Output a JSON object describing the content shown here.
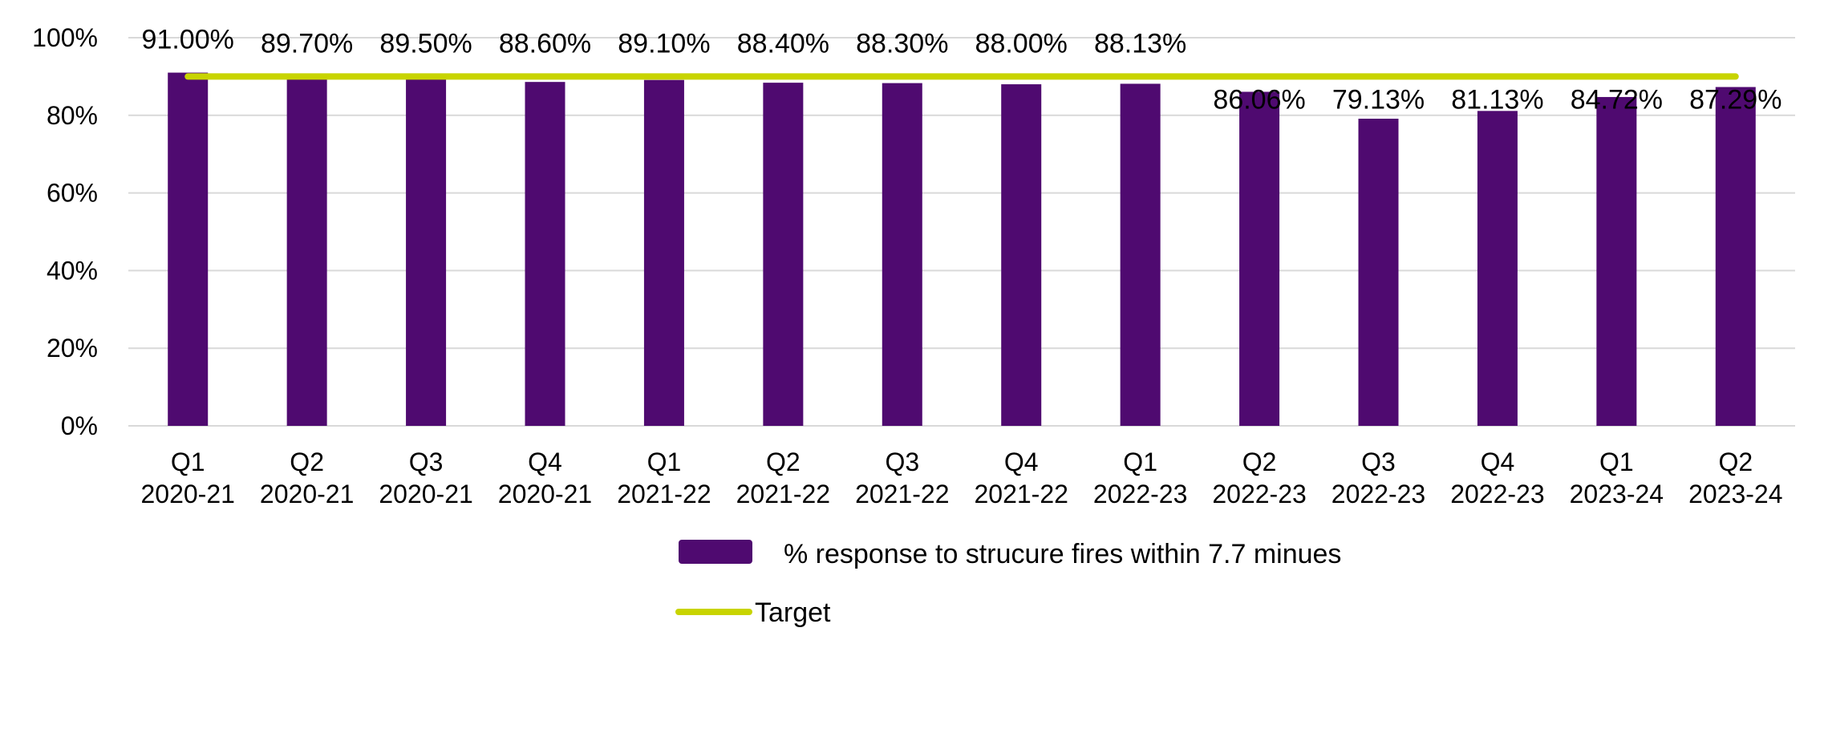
{
  "chart_data": {
    "type": "bar",
    "categories": [
      [
        "Q1",
        "2020-21"
      ],
      [
        "Q2",
        "2020-21"
      ],
      [
        "Q3",
        "2020-21"
      ],
      [
        "Q4",
        "2020-21"
      ],
      [
        "Q1",
        "2021-22"
      ],
      [
        "Q2",
        "2021-22"
      ],
      [
        "Q3",
        "2021-22"
      ],
      [
        "Q4",
        "2021-22"
      ],
      [
        "Q1",
        "2022-23"
      ],
      [
        "Q2",
        "2022-23"
      ],
      [
        "Q3",
        "2022-23"
      ],
      [
        "Q4",
        "2022-23"
      ],
      [
        "Q1",
        "2023-24"
      ],
      [
        "Q2",
        "2023-24"
      ]
    ],
    "series": [
      {
        "name": "% response to strucure fires within 7.7 minues",
        "type": "bar",
        "color": "#4f0a70",
        "values": [
          91.0,
          89.7,
          89.5,
          88.6,
          89.1,
          88.4,
          88.3,
          88.0,
          88.13,
          86.06,
          79.13,
          81.13,
          84.72,
          87.29
        ],
        "labels": [
          "91.00%",
          "89.70%",
          "89.50%",
          "88.60%",
          "89.10%",
          "88.40%",
          "88.30%",
          "88.00%",
          "88.13%",
          "86.06%",
          "79.13%",
          "81.13%",
          "84.72%",
          "87.29%"
        ]
      },
      {
        "name": "Target",
        "type": "line",
        "color": "#c8d400",
        "values": [
          90,
          90,
          90,
          90,
          90,
          90,
          90,
          90,
          90,
          90,
          90,
          90,
          90,
          90
        ]
      }
    ],
    "y_ticks": [
      0,
      20,
      40,
      60,
      80,
      100
    ],
    "y_tick_labels": [
      "0%",
      "20%",
      "40%",
      "60%",
      "80%",
      "100%"
    ],
    "ylim": [
      0,
      100
    ],
    "title": "",
    "xlabel": "",
    "ylabel": "",
    "grid": true,
    "legend": "bottom"
  }
}
